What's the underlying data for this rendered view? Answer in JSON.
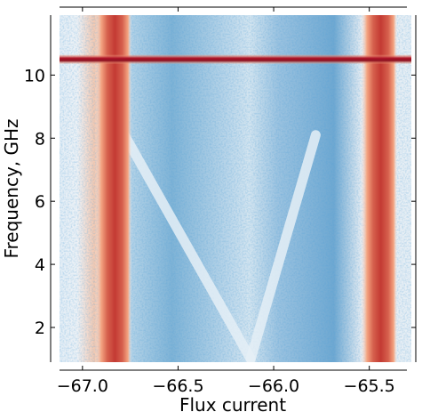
{
  "chart_data": {
    "type": "heatmap",
    "xlabel": "Flux current",
    "ylabel": "Frequency, GHz",
    "xlim": [
      -67.12,
      -65.28
    ],
    "ylim": [
      0.9,
      11.9
    ],
    "x_ticks": [
      -67.0,
      -66.5,
      -66.0,
      -65.5
    ],
    "x_tick_labels": [
      "−67.0",
      "−66.5",
      "−66.0",
      "−65.5"
    ],
    "y_ticks": [
      2,
      4,
      6,
      8,
      10
    ],
    "y_tick_labels": [
      "2",
      "4",
      "6",
      "8",
      "10"
    ],
    "colormap": "RdBu (red = high, white = mid, blue = low)",
    "features": {
      "horizontal_line_frequency": 10.5,
      "vertical_bands_flux": [
        -66.84,
        -65.45
      ],
      "v_shape_arms": [
        {
          "from": [
            -66.78,
            8.1
          ],
          "to": [
            -66.12,
            1.0
          ]
        },
        {
          "from": [
            -65.78,
            8.1
          ],
          "to": [
            -66.12,
            1.0
          ]
        }
      ]
    },
    "colors": {
      "red": "#b2182b",
      "light_red": "#f4a582",
      "white": "#f7f7f7",
      "light_blue": "#92c5de",
      "blue": "#2166ac"
    }
  }
}
